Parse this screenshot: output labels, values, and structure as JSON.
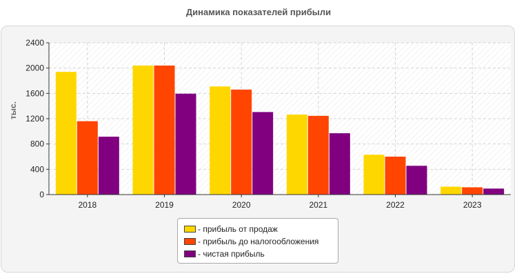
{
  "chart_data": {
    "type": "bar",
    "title": "Динамика показателей прибыли",
    "xlabel": "",
    "ylabel": "тыс.",
    "ylim": [
      0,
      2400
    ],
    "yticks": [
      0,
      400,
      800,
      1200,
      1600,
      2000,
      2400
    ],
    "categories": [
      "2018",
      "2019",
      "2020",
      "2021",
      "2022",
      "2023"
    ],
    "series": [
      {
        "name": "- прибыль от продаж",
        "color": "#FFD700",
        "values": [
          1940,
          2040,
          1710,
          1265,
          630,
          125
        ]
      },
      {
        "name": "- прибыль до налогообложения",
        "color": "#FF4500",
        "values": [
          1160,
          2040,
          1660,
          1245,
          600,
          115
        ]
      },
      {
        "name": "- чистая прибыль",
        "color": "#800080",
        "values": [
          915,
          1595,
          1305,
          970,
          455,
          95
        ]
      }
    ],
    "grid": true,
    "legend_position": "bottom-center"
  }
}
